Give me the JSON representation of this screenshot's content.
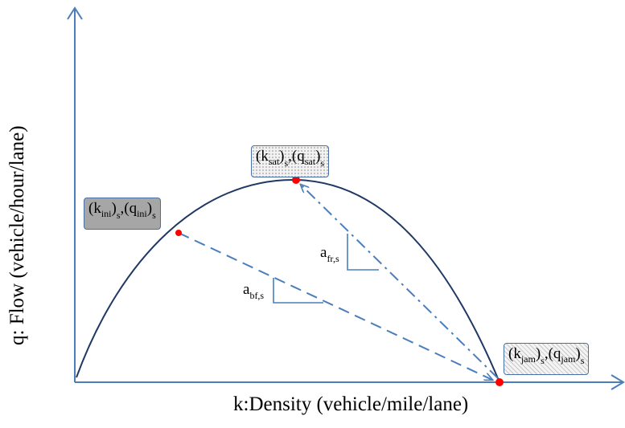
{
  "axes": {
    "xlabel": "k:Density (vehicle/mile/lane)",
    "ylabel": "q: Flow (vehicle/hour/lane)"
  },
  "points": {
    "initial": {
      "k": "k",
      "k_sub": "ini",
      "q": "q",
      "q_sub": "ini",
      "outer_sub": "s"
    },
    "saturation": {
      "k": "k",
      "k_sub": "sat",
      "q": "q",
      "q_sub": "sat",
      "outer_sub": "s"
    },
    "jam": {
      "k": "k",
      "k_sub": "jam",
      "q": "q",
      "q_sub": "jam",
      "outer_sub": "s"
    }
  },
  "slopes": {
    "forward": {
      "symbol": "a",
      "sub": "fr,s"
    },
    "backward": {
      "symbol": "a",
      "sub": "bf,s"
    }
  },
  "colors": {
    "axis": "#4a7ebb",
    "curve": "#1f3864",
    "dashed": "#4a7ebb",
    "point": "#ff0000"
  }
}
